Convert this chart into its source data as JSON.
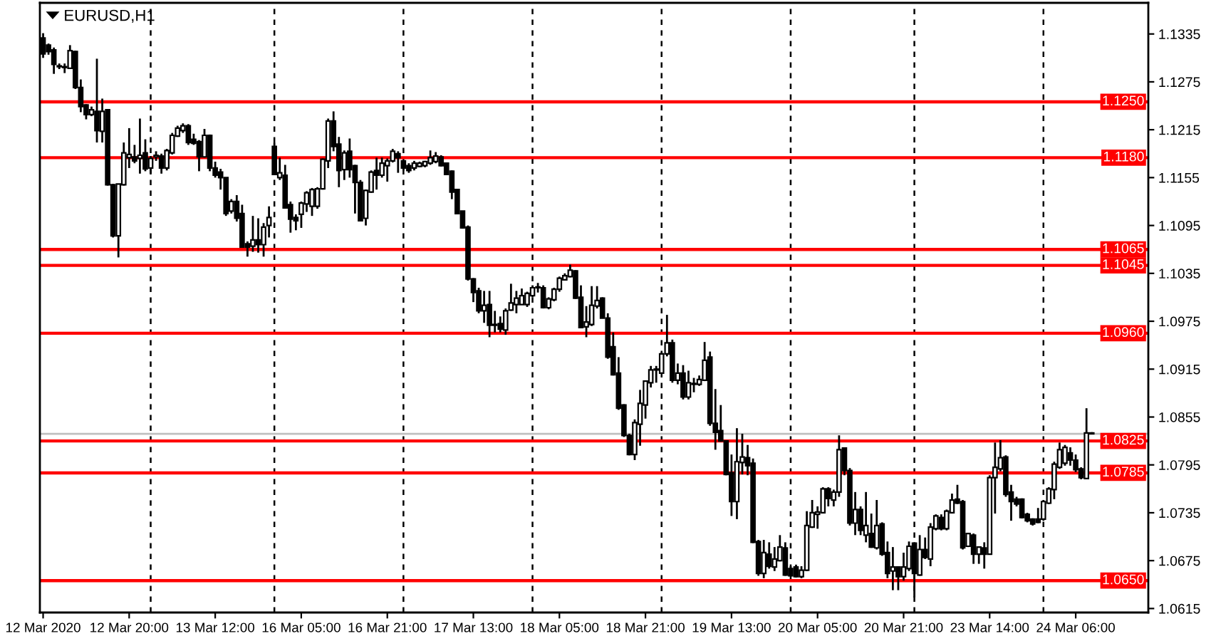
{
  "chart_data": {
    "type": "candlestick",
    "title": "EURUSD,H1",
    "categories": [
      "12 Mar 2020",
      null,
      null,
      null,
      null,
      null,
      null,
      null,
      null,
      null,
      null,
      null,
      null,
      null,
      null,
      null,
      "12 Mar 20:00",
      null,
      null,
      null,
      null,
      null,
      null,
      null,
      null,
      null,
      null,
      null,
      null,
      null,
      null,
      null,
      "13 Mar 12:00",
      null,
      null,
      null,
      null,
      null,
      null,
      null,
      null,
      null,
      null,
      null,
      null,
      null,
      null,
      null,
      "16 Mar 05:00",
      null,
      null,
      null,
      null,
      null,
      null,
      null,
      null,
      null,
      null,
      null,
      null,
      null,
      null,
      null,
      "16 Mar 21:00",
      null,
      null,
      null,
      null,
      null,
      null,
      null,
      null,
      null,
      null,
      null,
      null,
      null,
      null,
      null,
      "17 Mar 13:00",
      null,
      null,
      null,
      null,
      null,
      null,
      null,
      null,
      null,
      null,
      null,
      null,
      null,
      null,
      null,
      "18 Mar 05:00",
      null,
      null,
      null,
      null,
      null,
      null,
      null,
      null,
      null,
      null,
      null,
      null,
      null,
      null,
      null,
      "18 Mar 21:00",
      null,
      null,
      null,
      null,
      null,
      null,
      null,
      null,
      null,
      null,
      null,
      null,
      null,
      null,
      null,
      "19 Mar 13:00",
      null,
      null,
      null,
      null,
      null,
      null,
      null,
      null,
      null,
      null,
      null,
      null,
      null,
      null,
      null,
      "20 Mar 05:00",
      null,
      null,
      null,
      null,
      null,
      null,
      null,
      null,
      null,
      null,
      null,
      null,
      null,
      null,
      null,
      "20 Mar 21:00",
      null,
      null,
      null,
      null,
      null,
      null,
      null,
      null,
      null,
      null,
      null,
      null,
      null,
      null,
      null,
      "23 Mar 14:00",
      null,
      null,
      null,
      null,
      null,
      null,
      null,
      null,
      null,
      null,
      null,
      null,
      null,
      null,
      null,
      "24 Mar 06:00",
      null,
      null,
      null
    ],
    "ohlc": [
      [
        1.133,
        1.1336,
        1.1305,
        1.131
      ],
      [
        1.1321,
        1.1323,
        1.1309,
        1.1313
      ],
      [
        1.1315,
        1.1318,
        1.1285,
        1.1297
      ],
      [
        1.1295,
        1.1298,
        1.1291,
        1.1294
      ],
      [
        1.1294,
        1.1298,
        1.1286,
        1.1293
      ],
      [
        1.1292,
        1.1321,
        1.1291,
        1.1314
      ],
      [
        1.1313,
        1.1314,
        1.1266,
        1.1268
      ],
      [
        1.1268,
        1.1278,
        1.1237,
        1.1244
      ],
      [
        1.1246,
        1.1247,
        1.1228,
        1.1234
      ],
      [
        1.1234,
        1.1244,
        1.1232,
        1.124
      ],
      [
        1.1238,
        1.1304,
        1.1199,
        1.1214
      ],
      [
        1.1213,
        1.1254,
        1.1199,
        1.1238
      ],
      [
        1.124,
        1.1241,
        1.1145,
        1.1146
      ],
      [
        1.1146,
        1.1147,
        1.108,
        1.1082
      ],
      [
        1.1082,
        1.1147,
        1.1055,
        1.1147
      ],
      [
        1.1146,
        1.1199,
        1.1145,
        1.1186
      ],
      [
        1.118,
        1.1217,
        1.1167,
        1.1184
      ],
      [
        1.1181,
        1.1196,
        1.1173,
        1.1176
      ],
      [
        1.1179,
        1.1229,
        1.116,
        1.1183
      ],
      [
        1.1186,
        1.1203,
        1.1163,
        1.1166
      ],
      [
        1.1167,
        1.1182,
        1.116,
        1.1179
      ],
      [
        1.1181,
        1.1188,
        1.1176,
        1.1183
      ],
      [
        1.1182,
        1.1185,
        1.116,
        1.1167
      ],
      [
        1.1167,
        1.1191,
        1.1164,
        1.1189
      ],
      [
        1.1186,
        1.1211,
        1.1184,
        1.1208
      ],
      [
        1.1207,
        1.122,
        1.1206,
        1.1217
      ],
      [
        1.1214,
        1.1223,
        1.1211,
        1.122
      ],
      [
        1.122,
        1.1222,
        1.1196,
        1.1199
      ],
      [
        1.1203,
        1.121,
        1.1196,
        1.1198
      ],
      [
        1.12,
        1.1202,
        1.1163,
        1.1181
      ],
      [
        1.1181,
        1.1216,
        1.118,
        1.1208
      ],
      [
        1.1208,
        1.1209,
        1.1163,
        1.1167
      ],
      [
        1.1167,
        1.1175,
        1.1155,
        1.1158
      ],
      [
        1.1162,
        1.1166,
        1.114,
        1.1155
      ],
      [
        1.1155,
        1.1155,
        1.1107,
        1.111
      ],
      [
        1.1113,
        1.1128,
        1.111,
        1.1125
      ],
      [
        1.1125,
        1.1133,
        1.11,
        1.1104
      ],
      [
        1.111,
        1.1121,
        1.1067,
        1.1068
      ],
      [
        1.1072,
        1.1075,
        1.1056,
        1.1068
      ],
      [
        1.1069,
        1.1107,
        1.1062,
        1.1077
      ],
      [
        1.1077,
        1.1104,
        1.1061,
        1.1071
      ],
      [
        1.1071,
        1.1098,
        1.1056,
        1.1093
      ],
      [
        1.1095,
        1.1119,
        1.108,
        1.1105
      ],
      [
        1.1194,
        1.1199,
        1.1158,
        1.1159
      ],
      [
        1.1155,
        1.118,
        1.1152,
        1.1161
      ],
      [
        1.1158,
        1.1171,
        1.1116,
        1.1117
      ],
      [
        1.1121,
        1.1125,
        1.1086,
        1.1103
      ],
      [
        1.1105,
        1.1109,
        1.1089,
        1.1101
      ],
      [
        1.1109,
        1.1125,
        1.1092,
        1.1123
      ],
      [
        1.1122,
        1.1138,
        1.1112,
        1.1136
      ],
      [
        1.1119,
        1.1142,
        1.1107,
        1.114
      ],
      [
        1.1119,
        1.1143,
        1.1116,
        1.1141
      ],
      [
        1.1141,
        1.1179,
        1.114,
        1.1178
      ],
      [
        1.1176,
        1.1229,
        1.1167,
        1.1226
      ],
      [
        1.1226,
        1.1238,
        1.1188,
        1.1194
      ],
      [
        1.1197,
        1.1206,
        1.1143,
        1.1164
      ],
      [
        1.1165,
        1.1189,
        1.1152,
        1.1186
      ],
      [
        1.1188,
        1.1204,
        1.1155,
        1.1165
      ],
      [
        1.117,
        1.1171,
        1.111,
        1.1149
      ],
      [
        1.1149,
        1.1152,
        1.1101,
        1.1101
      ],
      [
        1.1104,
        1.114,
        1.1095,
        1.1139
      ],
      [
        1.1137,
        1.1164,
        1.1136,
        1.1162
      ],
      [
        1.1164,
        1.118,
        1.114,
        1.1158
      ],
      [
        1.1158,
        1.118,
        1.1155,
        1.1173
      ],
      [
        1.117,
        1.1179,
        1.115,
        1.1176
      ],
      [
        1.1176,
        1.1191,
        1.1174,
        1.1188
      ],
      [
        1.1185,
        1.1188,
        1.1161,
        1.118
      ],
      [
        1.1176,
        1.1177,
        1.1164,
        1.1167
      ],
      [
        1.117,
        1.1173,
        1.1161,
        1.1164
      ],
      [
        1.1167,
        1.1176,
        1.1164,
        1.1173
      ],
      [
        1.1169,
        1.1175,
        1.1168,
        1.1173
      ],
      [
        1.117,
        1.1176,
        1.1168,
        1.1175
      ],
      [
        1.1173,
        1.1189,
        1.1171,
        1.118
      ],
      [
        1.1175,
        1.1187,
        1.1173,
        1.1182
      ],
      [
        1.1181,
        1.1183,
        1.1169,
        1.117
      ],
      [
        1.1173,
        1.1174,
        1.1158,
        1.1159
      ],
      [
        1.1163,
        1.1164,
        1.1128,
        1.1137
      ],
      [
        1.114,
        1.1141,
        1.111,
        1.111
      ],
      [
        1.1113,
        1.1113,
        1.1091,
        1.1092
      ],
      [
        1.1093,
        1.1095,
        1.1026,
        1.1028
      ],
      [
        1.1028,
        1.1029,
        1.0999,
        1.1011
      ],
      [
        1.1013,
        1.1017,
        1.0985,
        1.0988
      ],
      [
        1.0988,
        1.1013,
        1.0973,
        1.0995
      ],
      [
        1.0996,
        1.1013,
        1.0955,
        1.097
      ],
      [
        1.097,
        1.0988,
        1.0961,
        1.0971
      ],
      [
        1.0972,
        1.0981,
        1.0961,
        1.0965
      ],
      [
        1.0964,
        1.0991,
        1.0958,
        1.0988
      ],
      [
        1.0989,
        1.1022,
        1.0988,
        1.0998
      ],
      [
        1.0996,
        1.1013,
        1.0985,
        1.1004
      ],
      [
        1.0996,
        1.1016,
        1.0996,
        1.1007
      ],
      [
        1.0996,
        1.1012,
        1.0993,
        1.101
      ],
      [
        1.1007,
        1.102,
        1.1005,
        1.1017
      ],
      [
        1.1017,
        1.1023,
        1.1011,
        1.1018
      ],
      [
        1.1017,
        1.102,
        1.0991,
        1.0992
      ],
      [
        1.0992,
        1.1005,
        1.099,
        1.1003
      ],
      [
        1.1002,
        1.1017,
        1.1,
        1.1015
      ],
      [
        1.1015,
        1.1031,
        1.1012,
        1.1029
      ],
      [
        1.1027,
        1.1035,
        1.1026,
        1.1032
      ],
      [
        1.1031,
        1.1046,
        1.103,
        1.1039
      ],
      [
        1.1038,
        1.1039,
        1.1003,
        1.1004
      ],
      [
        1.1005,
        1.102,
        1.0967,
        1.0967
      ],
      [
        1.0968,
        1.0994,
        1.0955,
        1.0974
      ],
      [
        1.0971,
        1.1019,
        1.0969,
        1.0995
      ],
      [
        1.0994,
        1.1019,
        1.0991,
        1.1001
      ],
      [
        1.1004,
        1.1005,
        1.0979,
        1.0979
      ],
      [
        1.0979,
        1.0985,
        1.0928,
        1.093
      ],
      [
        1.0943,
        1.0961,
        1.0907,
        1.0908
      ],
      [
        1.091,
        1.093,
        1.0864,
        1.0866
      ],
      [
        1.087,
        1.0871,
        1.083,
        1.0832
      ],
      [
        1.0832,
        1.0834,
        1.0807,
        1.0808
      ],
      [
        1.0808,
        1.0852,
        1.0801,
        1.0848
      ],
      [
        1.0846,
        1.0889,
        1.0819,
        1.0872
      ],
      [
        1.087,
        1.0901,
        1.0853,
        1.09
      ],
      [
        1.0898,
        1.0919,
        1.0892,
        1.0914
      ],
      [
        1.0914,
        1.0919,
        1.0898,
        1.0915
      ],
      [
        1.091,
        1.0936,
        1.091,
        1.0934
      ],
      [
        1.0934,
        1.0983,
        1.0931,
        1.0948
      ],
      [
        1.0948,
        1.0952,
        1.0898,
        1.0901
      ],
      [
        1.0901,
        1.0922,
        1.0896,
        1.091
      ],
      [
        1.091,
        1.092,
        1.0877,
        1.088
      ],
      [
        1.088,
        1.0913,
        1.0877,
        1.0898
      ],
      [
        1.0897,
        1.0904,
        1.0886,
        1.0896
      ],
      [
        1.0896,
        1.0907,
        1.0894,
        1.0902
      ],
      [
        1.0901,
        1.0949,
        1.09,
        1.0926
      ],
      [
        1.093,
        1.0937,
        1.0844,
        1.0847
      ],
      [
        1.0847,
        1.089,
        1.0814,
        1.0836
      ],
      [
        1.0838,
        1.087,
        1.0824,
        1.0825
      ],
      [
        1.0825,
        1.0826,
        1.0782,
        1.0783
      ],
      [
        1.0785,
        1.0808,
        1.0731,
        1.0749
      ],
      [
        1.0749,
        1.0841,
        1.0727,
        1.0799
      ],
      [
        1.0798,
        1.0834,
        1.0783,
        1.0805
      ],
      [
        1.0804,
        1.082,
        1.0782,
        1.0794
      ],
      [
        1.0797,
        1.0803,
        1.0697,
        1.0698
      ],
      [
        1.0699,
        1.0701,
        1.0656,
        1.0659
      ],
      [
        1.0659,
        1.0701,
        1.0653,
        1.0685
      ],
      [
        1.0683,
        1.0698,
        1.0665,
        1.0668
      ],
      [
        1.0667,
        1.0692,
        1.0662,
        1.0677
      ],
      [
        1.0675,
        1.0707,
        1.0674,
        1.0692
      ],
      [
        1.0691,
        1.0698,
        1.0656,
        1.0657
      ],
      [
        1.0665,
        1.0668,
        1.0655,
        1.0656
      ],
      [
        1.0667,
        1.067,
        1.0654,
        1.0655
      ],
      [
        1.0655,
        1.0668,
        1.0653,
        1.0663
      ],
      [
        1.0663,
        1.0737,
        1.0662,
        1.0719
      ],
      [
        1.0717,
        1.0751,
        1.0716,
        1.0735
      ],
      [
        1.0733,
        1.0743,
        1.0715,
        1.0736
      ],
      [
        1.0735,
        1.0767,
        1.0734,
        1.0765
      ],
      [
        1.0765,
        1.0767,
        1.0743,
        1.0753
      ],
      [
        1.0751,
        1.0764,
        1.0743,
        1.0761
      ],
      [
        1.0761,
        1.0832,
        1.0755,
        1.0814
      ],
      [
        1.0816,
        1.0817,
        1.0782,
        1.0788
      ],
      [
        1.0788,
        1.0791,
        1.0719,
        1.0722
      ],
      [
        1.0722,
        1.0761,
        1.0707,
        1.0739
      ],
      [
        1.0739,
        1.0743,
        1.0707,
        1.0713
      ],
      [
        1.0707,
        1.0761,
        1.0698,
        1.0719
      ],
      [
        1.0709,
        1.0734,
        1.0691,
        1.0692
      ],
      [
        1.0691,
        1.0751,
        1.0689,
        1.0719
      ],
      [
        1.0721,
        1.0723,
        1.0681,
        1.0683
      ],
      [
        1.0685,
        1.0699,
        1.0653,
        1.0659
      ],
      [
        1.0662,
        1.0692,
        1.0638,
        1.0667
      ],
      [
        1.0667,
        1.0668,
        1.0638,
        1.0655
      ],
      [
        1.0655,
        1.0685,
        1.065,
        1.0667
      ],
      [
        1.0665,
        1.0699,
        1.0662,
        1.0693
      ],
      [
        1.0697,
        1.0698,
        1.0629,
        1.0659
      ],
      [
        1.0657,
        1.0707,
        1.0656,
        1.0689
      ],
      [
        1.0689,
        1.0704,
        1.0677,
        1.0679
      ],
      [
        1.0677,
        1.0722,
        1.0668,
        1.0717
      ],
      [
        1.0715,
        1.0733,
        1.0713,
        1.0731
      ],
      [
        1.0729,
        1.0733,
        1.0713,
        1.0715
      ],
      [
        1.0715,
        1.0739,
        1.0713,
        1.0737
      ],
      [
        1.0735,
        1.0759,
        1.0734,
        1.0751
      ],
      [
        1.0752,
        1.077,
        1.0746,
        1.0747
      ],
      [
        1.0749,
        1.0751,
        1.0689,
        1.0691
      ],
      [
        1.0693,
        1.071,
        1.0692,
        1.0709
      ],
      [
        1.0707,
        1.0709,
        1.0671,
        1.0683
      ],
      [
        1.0683,
        1.0693,
        1.0671,
        1.0692
      ],
      [
        1.0691,
        1.0698,
        1.0665,
        1.0683
      ],
      [
        1.0683,
        1.0782,
        1.0683,
        1.0779
      ],
      [
        1.0779,
        1.0823,
        1.0734,
        1.0792
      ],
      [
        1.079,
        1.0826,
        1.0787,
        1.0804
      ],
      [
        1.0805,
        1.0807,
        1.0755,
        1.0758
      ],
      [
        1.0761,
        1.077,
        1.0725,
        1.0749
      ],
      [
        1.0752,
        1.0755,
        1.0743,
        1.0746
      ],
      [
        1.0752,
        1.0753,
        1.0728,
        1.0729
      ],
      [
        1.0733,
        1.0735,
        1.0723,
        1.0725
      ],
      [
        1.0727,
        1.0728,
        1.0719,
        1.0721
      ],
      [
        1.0727,
        1.0741,
        1.0722,
        1.0723
      ],
      [
        1.0727,
        1.0751,
        1.0725,
        1.0749
      ],
      [
        1.0747,
        1.0767,
        1.0746,
        1.0765
      ],
      [
        1.0764,
        1.0799,
        1.0752,
        1.0796
      ],
      [
        1.0792,
        1.0823,
        1.079,
        1.0814
      ],
      [
        1.0797,
        1.082,
        1.0794,
        1.0817
      ],
      [
        1.081,
        1.0817,
        1.0794,
        1.0801
      ],
      [
        1.0801,
        1.0808,
        1.0786,
        1.0789
      ],
      [
        1.079,
        1.0792,
        1.0777,
        1.0779
      ],
      [
        1.0778,
        1.0866,
        1.0777,
        1.0835
      ],
      [
        1.0834,
        1.0836,
        1.0834,
        1.0835
      ]
    ],
    "color": "#000000",
    "colors": [
      "#000000",
      "#000000",
      "#000000",
      "#000000",
      "#000000",
      "#ffffff",
      "#000000",
      "#000000",
      "#000000",
      "#ffffff",
      "#000000",
      "#ffffff",
      "#000000",
      "#000000",
      "#ffffff",
      "#ffffff",
      "#ffffff",
      "#000000",
      "#ffffff",
      "#000000",
      "#ffffff",
      "#ffffff",
      "#000000",
      "#ffffff",
      "#ffffff",
      "#ffffff",
      "#ffffff",
      "#000000",
      "#000000",
      "#000000",
      "#ffffff",
      "#000000",
      "#000000",
      "#000000",
      "#000000",
      "#ffffff",
      "#000000",
      "#000000",
      "#000000",
      "#ffffff",
      "#000000",
      "#ffffff",
      "#ffffff",
      "#000000",
      "#ffffff",
      "#000000",
      "#000000",
      "#000000",
      "#ffffff",
      "#ffffff",
      "#ffffff",
      "#ffffff",
      "#ffffff",
      "#ffffff",
      "#000000",
      "#000000",
      "#ffffff",
      "#000000",
      "#000000",
      "#000000",
      "#ffffff",
      "#ffffff",
      "#000000",
      "#ffffff",
      "#ffffff",
      "#ffffff",
      "#000000",
      "#000000",
      "#000000",
      "#ffffff",
      "#ffffff",
      "#ffffff",
      "#ffffff",
      "#ffffff",
      "#000000",
      "#000000",
      "#000000",
      "#000000",
      "#000000",
      "#000000",
      "#000000",
      "#000000",
      "#ffffff",
      "#000000",
      "#ffffff",
      "#000000",
      "#ffffff",
      "#ffffff",
      "#ffffff",
      "#ffffff",
      "#ffffff",
      "#ffffff",
      "#ffffff",
      "#000000",
      "#ffffff",
      "#ffffff",
      "#ffffff",
      "#ffffff",
      "#ffffff",
      "#000000",
      "#000000",
      "#ffffff",
      "#ffffff",
      "#ffffff",
      "#000000",
      "#000000",
      "#000000",
      "#000000",
      "#000000",
      "#000000",
      "#ffffff",
      "#ffffff",
      "#ffffff",
      "#ffffff",
      "#ffffff",
      "#ffffff",
      "#ffffff",
      "#000000",
      "#ffffff",
      "#000000",
      "#ffffff",
      "#000000",
      "#ffffff",
      "#ffffff",
      "#000000",
      "#000000",
      "#000000",
      "#000000",
      "#000000",
      "#ffffff",
      "#ffffff",
      "#000000",
      "#000000",
      "#000000",
      "#ffffff",
      "#000000",
      "#ffffff",
      "#ffffff",
      "#000000",
      "#000000",
      "#000000",
      "#ffffff",
      "#ffffff",
      "#ffffff",
      "#ffffff",
      "#ffffff",
      "#000000",
      "#ffffff",
      "#ffffff",
      "#000000",
      "#000000",
      "#ffffff",
      "#000000",
      "#ffffff",
      "#000000",
      "#ffffff",
      "#000000",
      "#000000",
      "#ffffff",
      "#000000",
      "#ffffff",
      "#ffffff",
      "#000000",
      "#ffffff",
      "#000000",
      "#ffffff",
      "#ffffff",
      "#000000",
      "#ffffff",
      "#ffffff",
      "#000000",
      "#000000",
      "#ffffff",
      "#000000",
      "#ffffff",
      "#000000",
      "#ffffff",
      "#ffffff",
      "#ffffff",
      "#000000",
      "#000000",
      "#000000",
      "#000000",
      "#000000",
      "#000000",
      "#000000",
      "#ffffff",
      "#ffffff",
      "#ffffff",
      "#ffffff",
      "#ffffff",
      "#000000",
      "#000000",
      "#000000",
      "#ffffff",
      "#ffffff"
    ],
    "ylim": [
      1.061,
      1.1374
    ],
    "yticks": [
      1.0615,
      1.0675,
      1.0735,
      1.0795,
      1.0855,
      1.0915,
      1.0975,
      1.1035,
      1.1095,
      1.1155,
      1.1215,
      1.1275,
      1.1335
    ],
    "ref_lines": [
      {
        "axis": "y",
        "value": 1.0834,
        "color": "#c0c0c0"
      },
      {
        "axis": "y",
        "value": 1.125,
        "label": "1.1250",
        "color": "#ff0000"
      },
      {
        "axis": "y",
        "value": 1.118,
        "label": "1.1180",
        "color": "#ff0000"
      },
      {
        "axis": "y",
        "value": 1.1065,
        "label": "1.1065",
        "color": "#ff0000"
      },
      {
        "axis": "y",
        "value": 1.1045,
        "label": "1.1045",
        "color": "#ff0000"
      },
      {
        "axis": "y",
        "value": 1.096,
        "label": "1.0960",
        "color": "#ff0000"
      },
      {
        "axis": "y",
        "value": 1.0825,
        "label": "1.0825",
        "color": "#ff0000"
      },
      {
        "axis": "y",
        "value": 1.0785,
        "label": "1.0785",
        "color": "#ff0000"
      },
      {
        "axis": "y",
        "value": 1.065,
        "label": "1.0650",
        "color": "#ff0000"
      }
    ]
  }
}
